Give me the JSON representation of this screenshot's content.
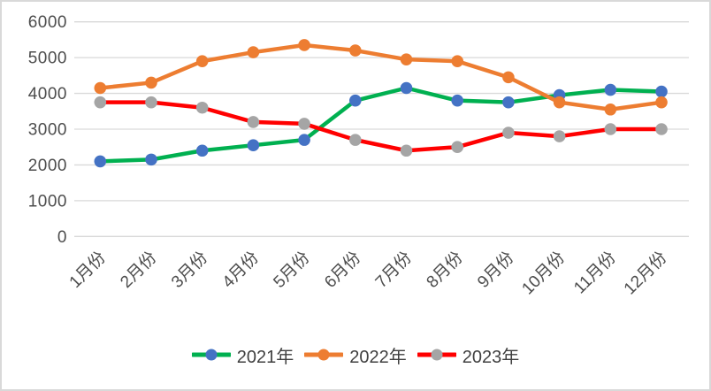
{
  "chart_data": {
    "type": "line",
    "title": "",
    "xlabel": "",
    "ylabel": "",
    "categories": [
      "1月份",
      "2月份",
      "3月份",
      "4月份",
      "5月份",
      "6月份",
      "7月份",
      "8月份",
      "9月份",
      "10月份",
      "11月份",
      "12月份"
    ],
    "series": [
      {
        "name": "2021年",
        "line_color": "#00B050",
        "marker_color": "#4472C4",
        "values": [
          2100,
          2150,
          2400,
          2550,
          2700,
          3800,
          4150,
          3800,
          3750,
          3950,
          4100,
          4050
        ]
      },
      {
        "name": "2022年",
        "line_color": "#ED7D31",
        "marker_color": "#ED7D31",
        "values": [
          4150,
          4300,
          4900,
          5150,
          5350,
          5200,
          4950,
          4900,
          4450,
          3750,
          3550,
          3750
        ]
      },
      {
        "name": "2023年",
        "line_color": "#FF0000",
        "marker_color": "#A5A5A5",
        "values": [
          3750,
          3750,
          3600,
          3200,
          3150,
          2700,
          2400,
          2500,
          2900,
          2800,
          3000,
          3000
        ]
      }
    ],
    "ylim": [
      0,
      6000
    ],
    "ytick_interval": 1000,
    "yticks": [
      "0",
      "1000",
      "2000",
      "3000",
      "4000",
      "5000",
      "6000"
    ],
    "grid": true,
    "gridline_color": "#D9D9D9",
    "axis_label_color": "#4d4d4d",
    "x_label_rotation_deg": 45,
    "legend_position": "bottom"
  }
}
